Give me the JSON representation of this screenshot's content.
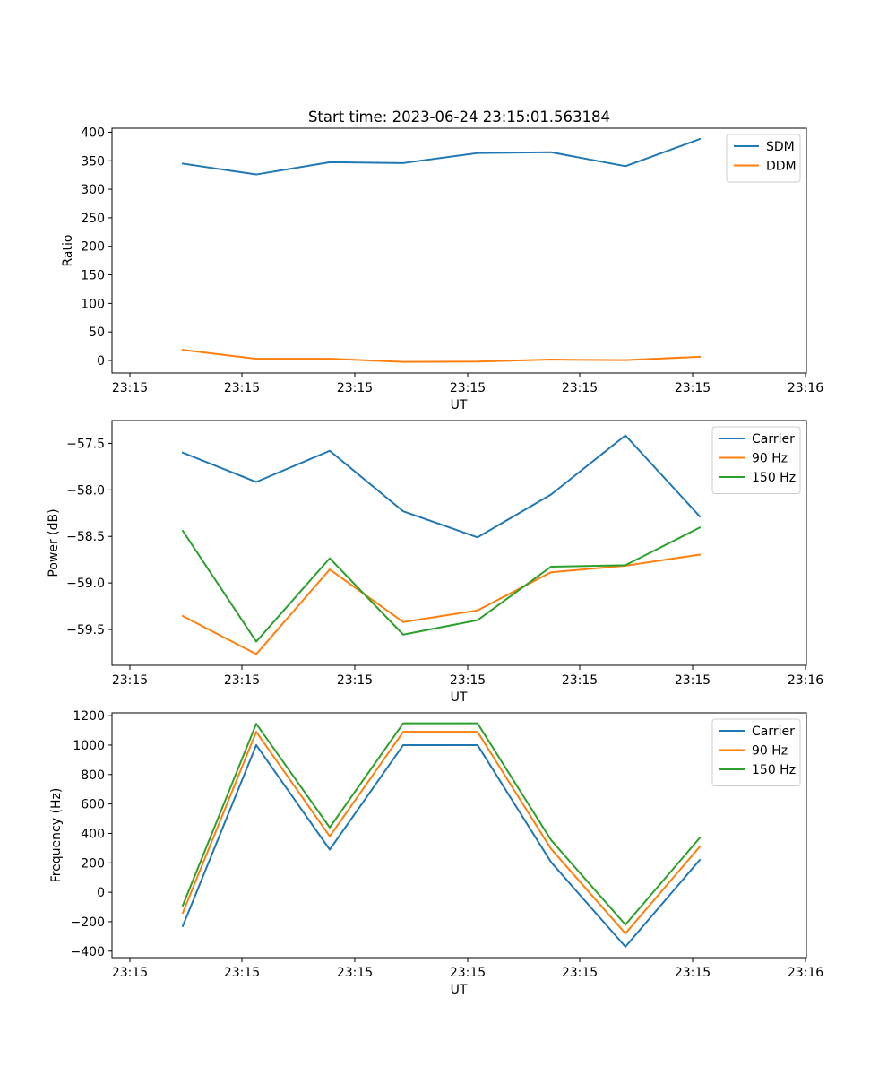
{
  "figure": {
    "title": "Start time: 2023-06-24 23:15:01.563184"
  },
  "chart_data": [
    {
      "type": "line",
      "xlabel": "UT",
      "ylabel": "Ratio",
      "x_tick_labels": [
        "23:15",
        "23:15",
        "23:15",
        "23:15",
        "23:15",
        "23:15",
        "23:15",
        "23:16"
      ],
      "y_ticks": [
        0,
        50,
        100,
        150,
        200,
        250,
        300,
        350,
        400
      ],
      "ylim": [
        -22,
        407
      ],
      "legend_position": "upper right",
      "grid": false,
      "series": [
        {
          "name": "SDM",
          "color": "#1f77b4",
          "values": [
            345,
            326,
            347.5,
            346,
            363.5,
            365,
            340.5,
            388
          ]
        },
        {
          "name": "DDM",
          "color": "#ff7f0e",
          "values": [
            18.5,
            3,
            3,
            -2.5,
            -2,
            1.5,
            0.5,
            6.5
          ]
        }
      ]
    },
    {
      "type": "line",
      "xlabel": "UT",
      "ylabel": "Power (dB)",
      "x_tick_labels": [
        "23:15",
        "23:15",
        "23:15",
        "23:15",
        "23:15",
        "23:15",
        "23:15",
        "23:16"
      ],
      "y_ticks": [
        -59.5,
        -59.0,
        -58.5,
        -58.0,
        -57.5
      ],
      "y_tick_labels": [
        "−59.5",
        "−59.0",
        "−58.5",
        "−58.0",
        "−57.5"
      ],
      "ylim": [
        -59.885,
        -57.255
      ],
      "legend_position": "upper right",
      "grid": false,
      "series": [
        {
          "name": "Carrier",
          "color": "#1f77b4",
          "values": [
            -57.6,
            -57.915,
            -57.58,
            -58.23,
            -58.51,
            -58.05,
            -57.415,
            -58.285
          ]
        },
        {
          "name": "90 Hz",
          "color": "#ff7f0e",
          "values": [
            -59.355,
            -59.765,
            -58.855,
            -59.42,
            -59.295,
            -58.885,
            -58.815,
            -58.695
          ]
        },
        {
          "name": "150 Hz",
          "color": "#2ca02c",
          "values": [
            -58.44,
            -59.63,
            -58.735,
            -59.555,
            -59.4,
            -58.825,
            -58.81,
            -58.405
          ]
        }
      ]
    },
    {
      "type": "line",
      "xlabel": "UT",
      "ylabel": "Frequency (Hz)",
      "x_tick_labels": [
        "23:15",
        "23:15",
        "23:15",
        "23:15",
        "23:15",
        "23:15",
        "23:15",
        "23:16"
      ],
      "y_ticks": [
        -400,
        -200,
        0,
        200,
        400,
        600,
        800,
        1000,
        1200
      ],
      "y_tick_labels": [
        "−400",
        "−200",
        "0",
        "200",
        "400",
        "600",
        "800",
        "1000",
        "1200"
      ],
      "ylim": [
        -444,
        1219
      ],
      "legend_position": "upper right",
      "grid": false,
      "series": [
        {
          "name": "Carrier",
          "color": "#1f77b4",
          "values": [
            -230,
            1000,
            290,
            1000,
            1000,
            205,
            -370,
            220
          ]
        },
        {
          "name": "90 Hz",
          "color": "#ff7f0e",
          "values": [
            -140,
            1090,
            380,
            1090,
            1090,
            295,
            -280,
            310
          ]
        },
        {
          "name": "150 Hz",
          "color": "#2ca02c",
          "values": [
            -90,
            1145,
            440,
            1148,
            1148,
            355,
            -220,
            370
          ]
        }
      ]
    }
  ]
}
